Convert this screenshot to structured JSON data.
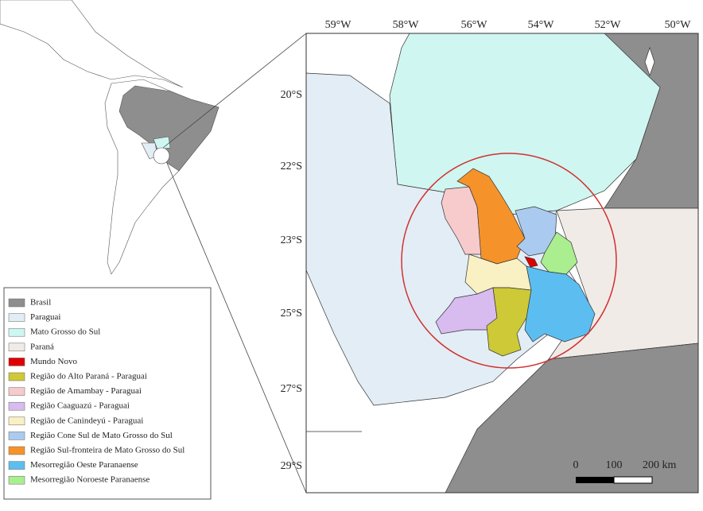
{
  "map": {
    "lon_labels": [
      "59°W",
      "58°W",
      "56°W",
      "54°W",
      "52°W",
      "50°W"
    ],
    "lat_labels": [
      "20°S",
      "22°S",
      "23°S",
      "25°S",
      "27°S",
      "29°S"
    ],
    "scale_labels": [
      "0",
      "100",
      "200 km"
    ],
    "legend": [
      {
        "label": "Brasil",
        "color": "#8e8e8e"
      },
      {
        "label": "Paraguai",
        "color": "#e3edf5"
      },
      {
        "label": "Mato Grosso do Sul",
        "color": "#cff6f1"
      },
      {
        "label": "Paraná",
        "color": "#f1ebe8"
      },
      {
        "label": "Mundo Novo",
        "color": "#e00000"
      },
      {
        "label": "Região do Alto Paraná - Paraguai",
        "color": "#cdc937"
      },
      {
        "label": "Região de Amambay - Paraguai",
        "color": "#f7cbcb"
      },
      {
        "label": "Região Caaguazú - Paraguai",
        "color": "#d8bbef"
      },
      {
        "label": "Região de Canindeyú - Paraguai",
        "color": "#f9f0c4"
      },
      {
        "label": "Região Cone Sul de Mato Grosso do Sul",
        "color": "#abcaef"
      },
      {
        "label": "Região Sul-fronteira de Mato Grosso do Sul",
        "color": "#f5932a"
      },
      {
        "label": "Mesorregião Oeste Paranaense",
        "color": "#5cbef0"
      },
      {
        "label": "Mesorregião Noroeste Paranaense",
        "color": "#aaee90"
      }
    ]
  }
}
